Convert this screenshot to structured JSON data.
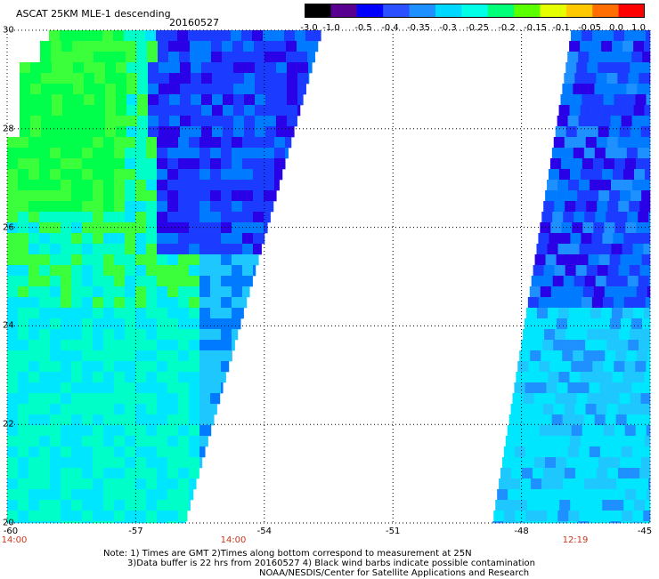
{
  "header": {
    "title": "ASCAT 25KM MLE-1 descending",
    "date": "20160527"
  },
  "colorbar": {
    "labels": [
      "-3.0",
      "-1.0",
      "-0.5",
      "-0.4",
      "-0.35",
      "-0.3",
      "-0.25",
      "-0.2",
      "-0.15",
      "-0.1",
      "-0.05",
      "0.0",
      "1.0"
    ],
    "colors": [
      "#000000",
      "#5a0090",
      "#0000ff",
      "#2a50ff",
      "#1e90ff",
      "#00d8ff",
      "#00ffe6",
      "#00ff78",
      "#5aff00",
      "#e6ff00",
      "#ffc800",
      "#ff6e00",
      "#ff0000"
    ]
  },
  "axes": {
    "y_ticks": [
      "30",
      "28",
      "26",
      "24",
      "22",
      "20"
    ],
    "x_ticks": [
      "-60",
      "-57",
      "-54",
      "-51",
      "-48",
      "-45"
    ],
    "time_labels": [
      "14:00",
      "14:00",
      "12:19"
    ]
  },
  "notes": {
    "line1": "Note: 1) Times are GMT 2)Times along bottom correspond to measurement at 25N",
    "line2": "3)Data buffer is 22 hrs from 20160527 4) Black wind barbs indicate possible contamination",
    "line3": "NOAA/NESDIS/Center for Satellite Applications and Research"
  },
  "map": {
    "lon_range": [
      -60,
      -45
    ],
    "lat_range": [
      20,
      30
    ],
    "grid": true,
    "left_swath_colors": [
      "#00ff4a",
      "#3cff3c",
      "#00ffc8",
      "#00e6ff",
      "#1ec8ff",
      "#007aff",
      "#1b3cff",
      "#2a00e6"
    ],
    "right_swath_colors": [
      "#00e6ff",
      "#1ec8ff",
      "#007aff",
      "#1b3cff",
      "#2a00e6",
      "#1e90ff"
    ]
  }
}
